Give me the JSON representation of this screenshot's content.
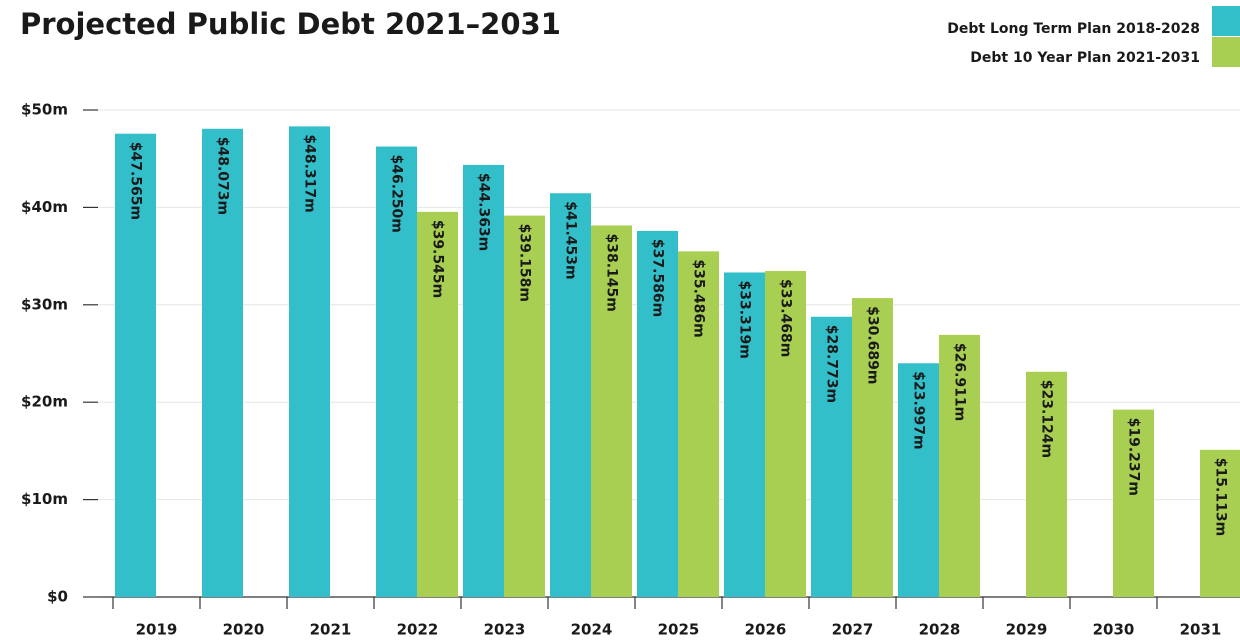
{
  "chart_data": {
    "type": "bar",
    "title": "Projected Public Debt 2021–2031",
    "categories": [
      "2019",
      "2020",
      "2021",
      "2022",
      "2023",
      "2024",
      "2025",
      "2026",
      "2027",
      "2028",
      "2029",
      "2030",
      "2031"
    ],
    "series": [
      {
        "name": "Debt Long Term Plan 2018-2028",
        "color": "#33bfca",
        "values": [
          47.565,
          48.073,
          48.317,
          46.25,
          44.363,
          41.453,
          37.586,
          33.319,
          28.773,
          23.997,
          null,
          null,
          null
        ],
        "value_labels": [
          "$47.565m",
          "$48.073m",
          "$48.317m",
          "$46.250m",
          "$44.363m",
          "$41.453m",
          "$37.586m",
          "$33.319m",
          "$28.773m",
          "$23.997m",
          null,
          null,
          null
        ]
      },
      {
        "name": "Debt 10 Year Plan 2021-2031",
        "color": "#a8cf52",
        "values": [
          null,
          null,
          null,
          39.545,
          39.158,
          38.145,
          35.486,
          33.468,
          30.689,
          26.911,
          23.124,
          19.237,
          15.113
        ],
        "value_labels": [
          null,
          null,
          null,
          "$39.545m",
          "$39.158m",
          "$38.145m",
          "$35.486m",
          "$33.468m",
          "$30.689m",
          "$26.911m",
          "$23.124m",
          "$19.237m",
          "$15.113m"
        ]
      }
    ],
    "ylim": [
      0,
      50
    ],
    "yticks": [
      {
        "value": 0,
        "label": "$0"
      },
      {
        "value": 10,
        "label": "$10m"
      },
      {
        "value": 20,
        "label": "$20m"
      },
      {
        "value": 30,
        "label": "$30m"
      },
      {
        "value": 40,
        "label": "$40m"
      },
      {
        "value": 50,
        "label": "$50m"
      }
    ],
    "grid": true,
    "legend": "top-right"
  }
}
